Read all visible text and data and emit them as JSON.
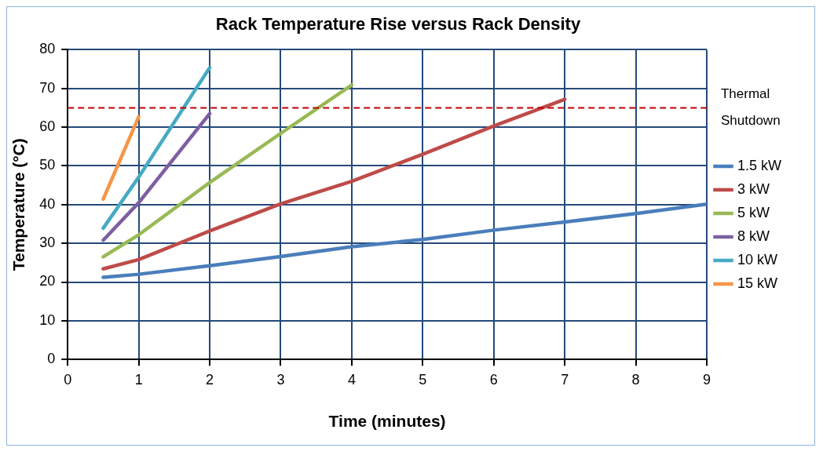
{
  "chart_data": {
    "type": "line",
    "title": "Rack Temperature Rise versus Rack Density",
    "xlabel": "Time (minutes)",
    "ylabel": "Temperature (°C)",
    "xlim": [
      0,
      9
    ],
    "xticks": [
      0,
      1,
      2,
      3,
      4,
      5,
      6,
      7,
      8,
      9
    ],
    "ylim": [
      0,
      80
    ],
    "yticks": [
      0,
      10,
      20,
      30,
      40,
      50,
      60,
      70,
      80
    ],
    "grid": true,
    "legend": "right",
    "marker": "none",
    "line_style": "solid",
    "series": [
      {
        "name": "1.5 kW",
        "color": "#4a7ebb",
        "x": [
          0.5,
          1,
          2,
          3,
          4,
          5,
          6,
          7,
          8,
          9
        ],
        "values": [
          21.2,
          22,
          24.2,
          26.6,
          29.1,
          31,
          33.4,
          35.5,
          37.7,
          40.1
        ]
      },
      {
        "name": "3 kW",
        "color": "#be4b48",
        "x": [
          0.5,
          1,
          2,
          3,
          4,
          5,
          6,
          7
        ],
        "values": [
          23.4,
          25.8,
          33.2,
          40.2,
          46,
          53,
          60.3,
          67.2
        ]
      },
      {
        "name": "5 kW",
        "color": "#98b954",
        "x": [
          0.5,
          1,
          2,
          3,
          4
        ],
        "values": [
          26.5,
          32.2,
          45.7,
          58.4,
          70.9
        ]
      },
      {
        "name": "8 kW",
        "color": "#7d60a0",
        "x": [
          0.5,
          1,
          2
        ],
        "values": [
          30.8,
          40.5,
          63.5
        ]
      },
      {
        "name": "10 kW",
        "color": "#46aac5",
        "x": [
          0.5,
          1,
          2
        ],
        "values": [
          33.9,
          47.1,
          75.4
        ]
      },
      {
        "name": "15 kW",
        "color": "#f69546",
        "x": [
          0.5,
          1
        ],
        "values": [
          41.4,
          62.7
        ]
      }
    ],
    "ref_lines": [
      {
        "axis": "y",
        "value": 65,
        "label": "Thermal Shutdown",
        "color": "#c00000",
        "line_style": "dashed"
      }
    ]
  }
}
